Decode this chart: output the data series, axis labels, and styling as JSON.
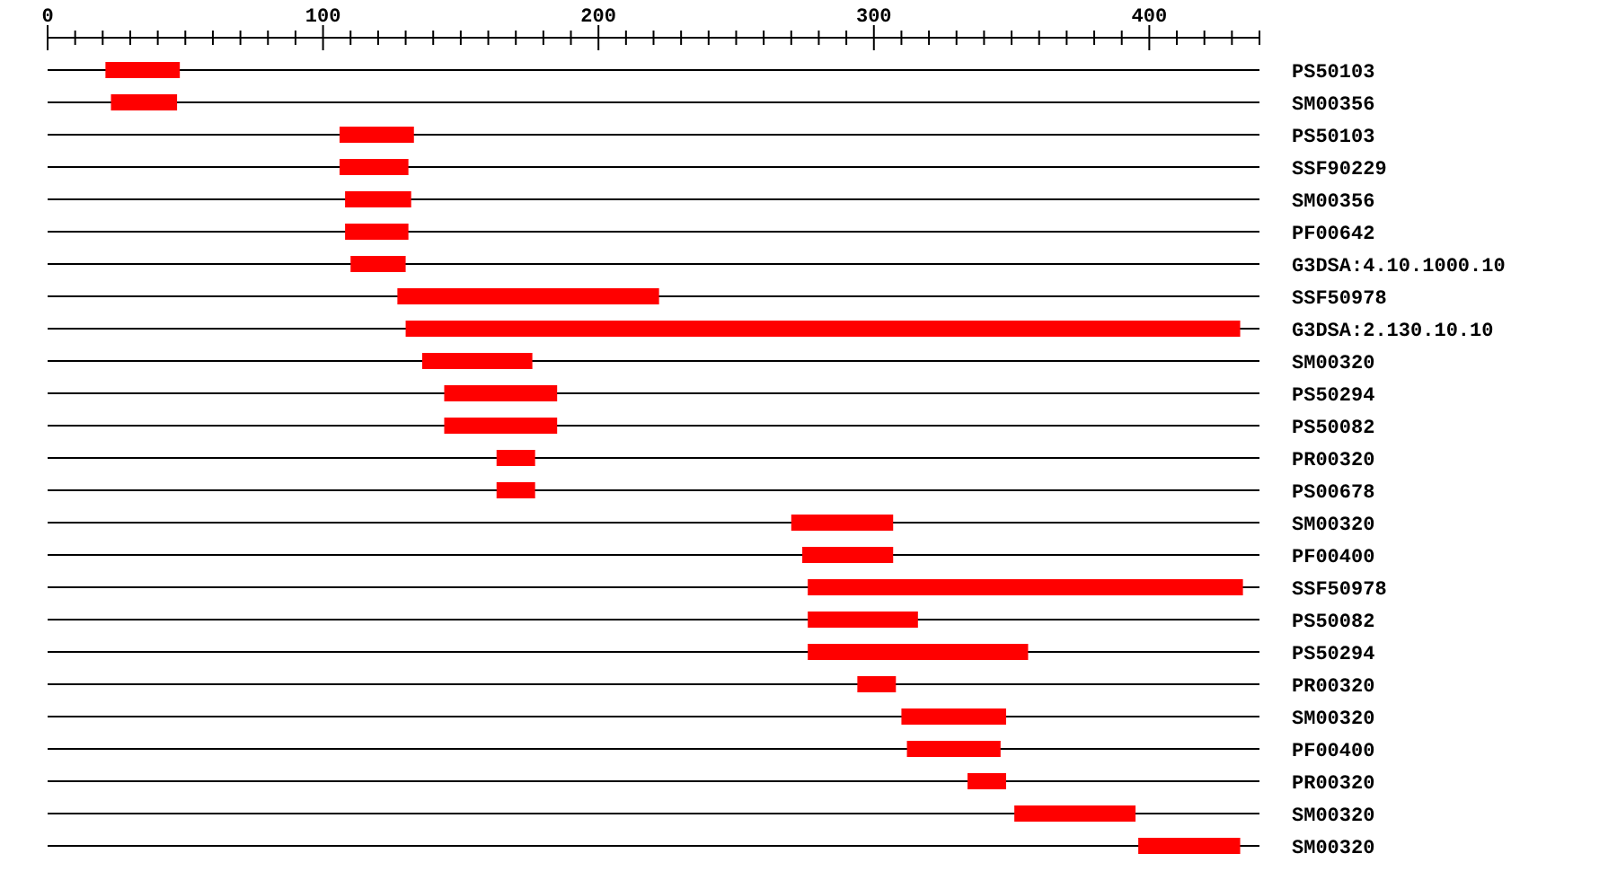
{
  "chart_data": {
    "type": "bar",
    "orientation": "horizontal",
    "grid": "y",
    "categories": [
      "PS50103",
      "SM00356",
      "PS50103",
      "SSF90229",
      "SM00356",
      "PF00642",
      "G3DSA:4.10.1000.10",
      "SSF50978",
      "G3DSA:2.130.10.10",
      "SM00320",
      "PS50294",
      "PS50082",
      "PR00320",
      "PS00678",
      "SM00320",
      "PF00400",
      "SSF50978",
      "PS50082",
      "PS50294",
      "PR00320",
      "SM00320",
      "PF00400",
      "PR00320",
      "SM00320",
      "SM00320"
    ],
    "base": [
      21,
      23,
      106,
      106,
      108,
      108,
      110,
      127,
      130,
      136,
      144,
      144,
      163,
      163,
      270,
      274,
      276,
      276,
      276,
      294,
      310,
      312,
      334,
      351,
      396
    ],
    "values": [
      27,
      24,
      27,
      25,
      24,
      23,
      20,
      95,
      303,
      40,
      41,
      41,
      14,
      14,
      37,
      33,
      158,
      40,
      80,
      14,
      38,
      34,
      14,
      44,
      37
    ],
    "color": "#ff0000",
    "xlim": [
      0,
      440
    ],
    "xticks": [
      0,
      {
        "value": 10,
        "label": null
      },
      {
        "value": 20,
        "label": null
      },
      {
        "value": 30,
        "label": null
      },
      {
        "value": 40,
        "label": null
      },
      {
        "value": 50,
        "label": null
      },
      {
        "value": 60,
        "label": null
      },
      {
        "value": 70,
        "label": null
      },
      {
        "value": 80,
        "label": null
      },
      {
        "value": 90,
        "label": null
      },
      100,
      {
        "value": 110,
        "label": null
      },
      {
        "value": 120,
        "label": null
      },
      {
        "value": 130,
        "label": null
      },
      {
        "value": 140,
        "label": null
      },
      {
        "value": 150,
        "label": null
      },
      {
        "value": 160,
        "label": null
      },
      {
        "value": 170,
        "label": null
      },
      {
        "value": 180,
        "label": null
      },
      {
        "value": 190,
        "label": null
      },
      200,
      {
        "value": 210,
        "label": null
      },
      {
        "value": 220,
        "label": null
      },
      {
        "value": 230,
        "label": null
      },
      {
        "value": 240,
        "label": null
      },
      {
        "value": 250,
        "label": null
      },
      {
        "value": 260,
        "label": null
      },
      {
        "value": 270,
        "label": null
      },
      {
        "value": 280,
        "label": null
      },
      {
        "value": 290,
        "label": null
      },
      300,
      {
        "value": 310,
        "label": null
      },
      {
        "value": 320,
        "label": null
      },
      {
        "value": 330,
        "label": null
      },
      {
        "value": 340,
        "label": null
      },
      {
        "value": 350,
        "label": null
      },
      {
        "value": 360,
        "label": null
      },
      {
        "value": 370,
        "label": null
      },
      {
        "value": 380,
        "label": null
      },
      {
        "value": 390,
        "label": null
      },
      400,
      {
        "value": 410,
        "label": null
      },
      {
        "value": 420,
        "label": null
      },
      {
        "value": 430,
        "label": null
      },
      {
        "value": 440,
        "label": null
      }
    ]
  }
}
